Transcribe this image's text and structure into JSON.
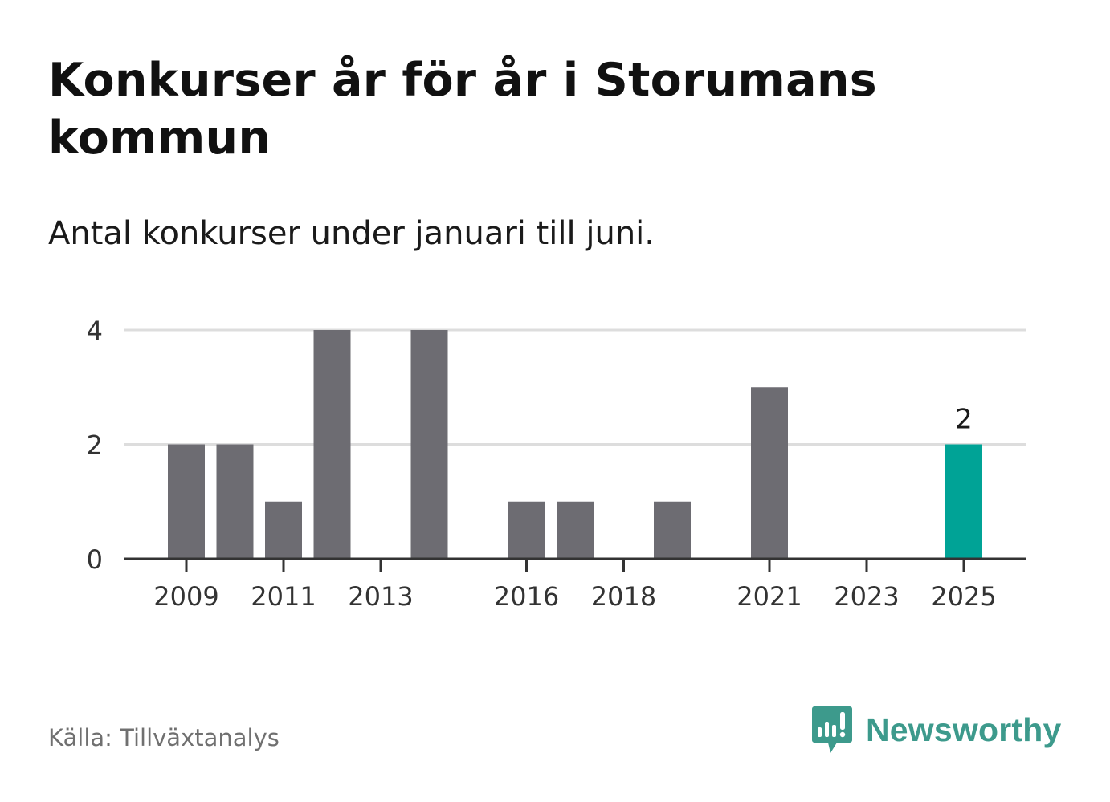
{
  "header": {
    "title": "Konkurser år för år i Storumans kommun",
    "subtitle": "Antal konkurser under januari till juni."
  },
  "footer": {
    "source": "Källa: Tillväxtanalys",
    "brand": "Newsworthy",
    "brand_icon": "newsworthy-logo-icon",
    "brand_color": "#3d9a8c"
  },
  "chart_data": {
    "type": "bar",
    "categories": [
      "2009",
      "2010",
      "2011",
      "2012",
      "2013",
      "2014",
      "2015",
      "2016",
      "2017",
      "2018",
      "2019",
      "2020",
      "2021",
      "2022",
      "2023",
      "2024",
      "2025"
    ],
    "values": [
      2,
      2,
      1,
      4,
      0,
      4,
      0,
      1,
      1,
      0,
      1,
      0,
      3,
      0,
      0,
      0,
      2
    ],
    "x_tick_labels": [
      "2009",
      "2011",
      "2013",
      "2016",
      "2018",
      "2021",
      "2023",
      "2025"
    ],
    "y_ticks": [
      0,
      2,
      4
    ],
    "ylim": [
      0,
      4
    ],
    "grid": true,
    "highlight": {
      "category": "2025",
      "label": "2"
    },
    "colors": {
      "bar": "#6d6c72",
      "highlight": "#00a396",
      "grid": "#dddddd",
      "axis": "#333333"
    }
  }
}
